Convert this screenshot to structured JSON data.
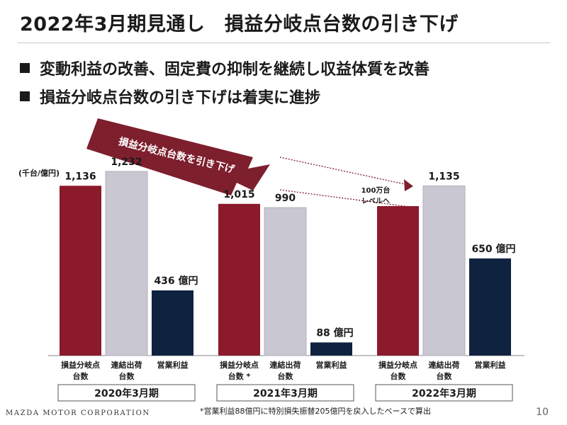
{
  "header": {
    "title": "2022年3月期見通し　損益分岐点台数の引き下げ"
  },
  "bullets": [
    "変動利益の改善、固定費の抑制を継続し収益体質を改善",
    "損益分岐点台数の引き下げは着実に進捗"
  ],
  "arrow_label": "損益分岐点台数を引き下げ",
  "callout": {
    "line1": "100万台",
    "line2": "レベルへ"
  },
  "footer": {
    "brand": "MAZDA MOTOR CORPORATION",
    "page": "10",
    "note": "*営業利益88億円に特別損失振替205億円を戻入したベースで算出"
  },
  "colors": {
    "breakeven": "#8b1a2b",
    "shipments": "#c8c7d2",
    "profit": "#0f2340",
    "arrow": "#7e1f2e"
  },
  "chart_data": {
    "type": "bar",
    "unit_label": "(千台/億円)",
    "categories": [
      "2020年3月期",
      "2021年3月期",
      "2022年3月期"
    ],
    "bar_labels": [
      [
        "損益分岐点",
        "台数"
      ],
      [
        "連結出荷",
        "台数"
      ],
      [
        "営業利益",
        ""
      ]
    ],
    "bar_labels_2021_first": [
      "損益分岐点",
      "台数 *"
    ],
    "series": [
      {
        "name": "損益分岐点台数",
        "values": [
          1136,
          1015,
          1000
        ],
        "labels": [
          "1,136",
          "1,015",
          ""
        ]
      },
      {
        "name": "連結出荷台数",
        "values": [
          1232,
          990,
          1135
        ],
        "labels": [
          "1,232",
          "990",
          "1,135"
        ]
      },
      {
        "name": "営業利益",
        "values": [
          436,
          88,
          650
        ],
        "labels": [
          "436 億円",
          "88 億円",
          "650 億円"
        ]
      }
    ],
    "ylim": [
      0,
      1350
    ]
  }
}
